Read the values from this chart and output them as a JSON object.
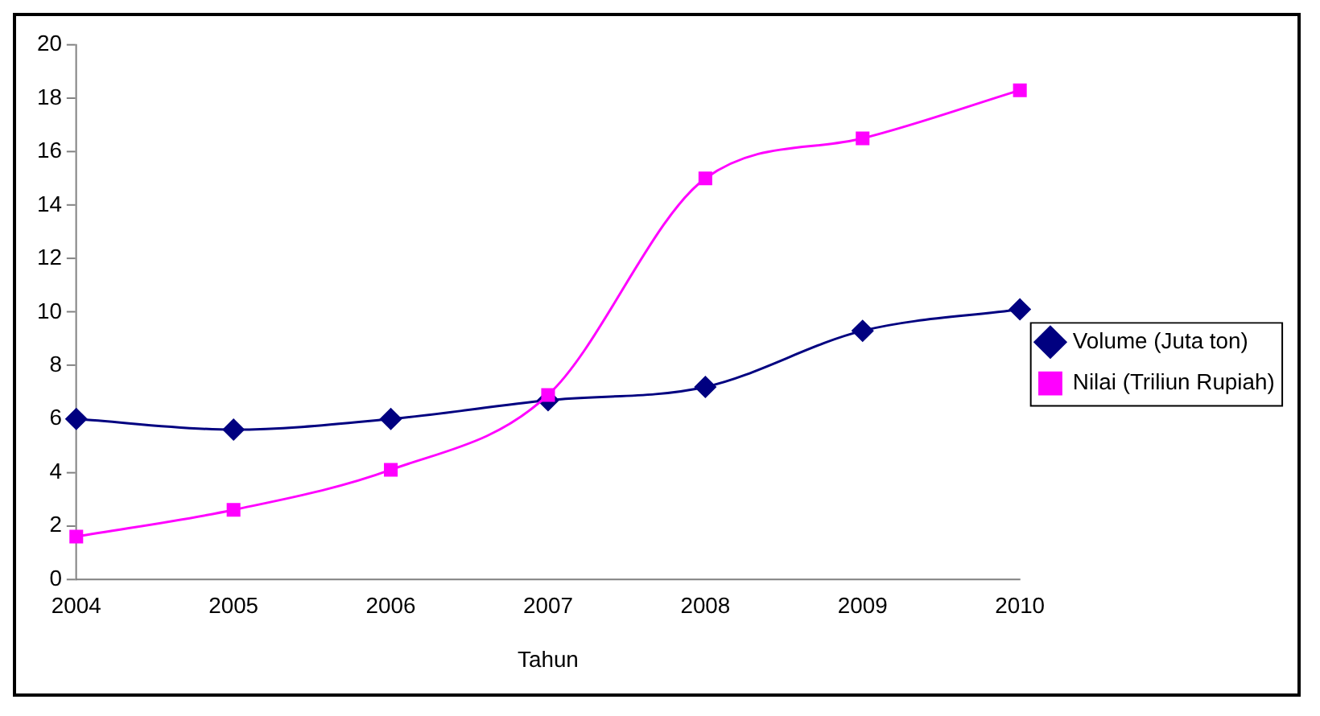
{
  "chart_data": {
    "type": "line",
    "xlabel": "Tahun",
    "categories": [
      "2004",
      "2005",
      "2006",
      "2007",
      "2008",
      "2009",
      "2010"
    ],
    "series": [
      {
        "name": "Volume (Juta ton)",
        "color": "#000080",
        "marker": "diamond",
        "values": [
          6.0,
          5.6,
          6.0,
          6.7,
          7.2,
          9.3,
          10.1
        ]
      },
      {
        "name": "Nilai (Triliun Rupiah)",
        "color": "#ff00ff",
        "marker": "square",
        "values": [
          1.6,
          2.6,
          4.1,
          6.9,
          15.0,
          16.5,
          18.3
        ]
      }
    ],
    "ylim": [
      0,
      20
    ],
    "yticks": [
      0,
      2,
      4,
      6,
      8,
      10,
      12,
      14,
      16,
      18,
      20
    ],
    "grid": false,
    "legend": "right"
  }
}
